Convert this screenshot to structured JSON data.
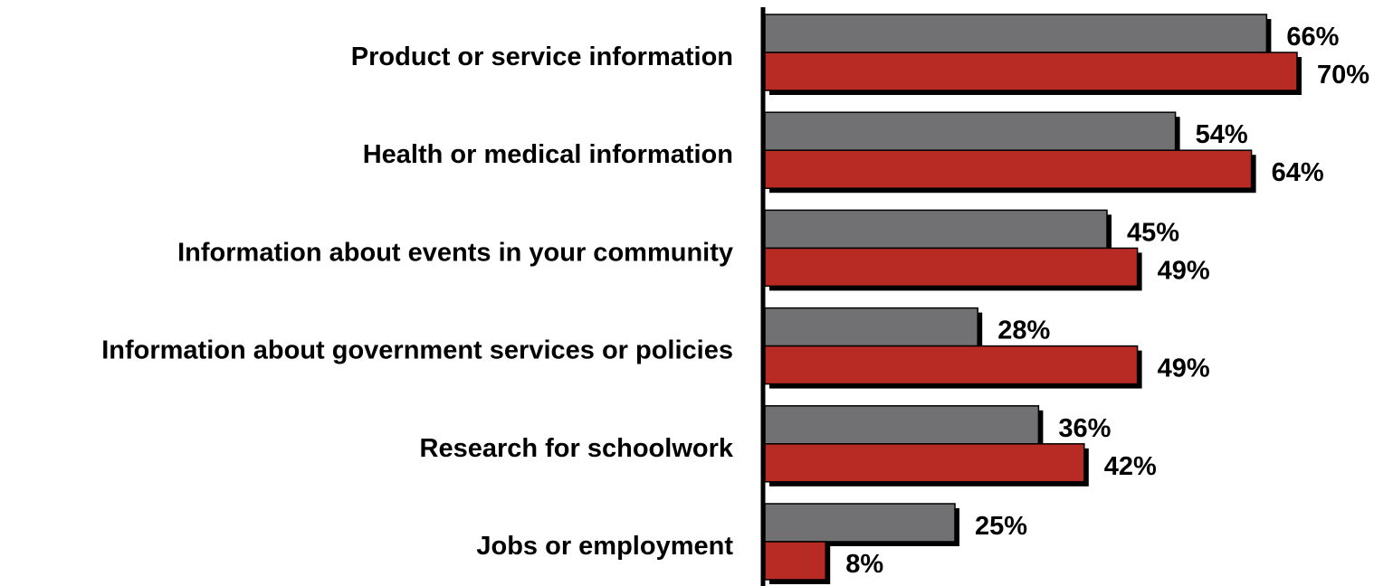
{
  "chart_data": {
    "type": "bar",
    "orientation": "horizontal",
    "categories": [
      "Product or service information",
      "Health or medical information",
      "Information about events in your community",
      "Information about government services or policies",
      "Research for schoolwork",
      "Jobs or employment"
    ],
    "series": [
      {
        "color": "#717173",
        "values": [
          66,
          54,
          45,
          28,
          36,
          25
        ]
      },
      {
        "color": "#b82b25",
        "values": [
          70,
          64,
          49,
          49,
          42,
          8
        ]
      }
    ],
    "value_suffix": "%",
    "xlim": [
      0,
      70
    ],
    "grid": false,
    "legend": "none"
  }
}
